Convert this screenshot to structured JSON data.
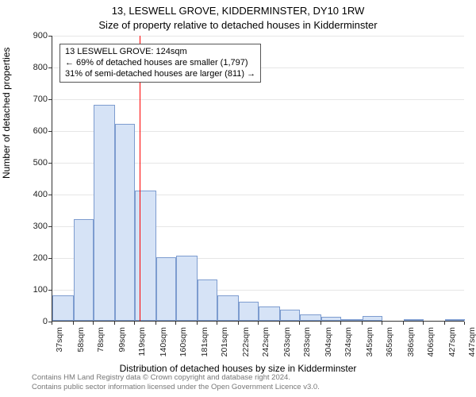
{
  "title_line1": "13, LESWELL GROVE, KIDDERMINSTER, DY10 1RW",
  "title_line2": "Size of property relative to detached houses in Kidderminster",
  "ylabel": "Number of detached properties",
  "xlabel": "Distribution of detached houses by size in Kidderminster",
  "footer_line1": "Contains HM Land Registry data © Crown copyright and database right 2024.",
  "footer_line2": "Contains public sector information licensed under the Open Government Licence v3.0.",
  "annotation": {
    "line1": "13 LESWELL GROVE: 124sqm",
    "line2": "← 69% of detached houses are smaller (1,797)",
    "line3": "31% of semi-detached houses are larger (811) →"
  },
  "chart": {
    "type": "histogram",
    "ylim": [
      0,
      900
    ],
    "ytick_step": 100,
    "bar_fill": "#d6e3f6",
    "bar_stroke": "#7d9ccf",
    "grid_color": "#e6e6e6",
    "marker_color": "#ff0000",
    "marker_x": 124,
    "label_fontsize": 12,
    "tick_fontsize": 11,
    "title_fontsize": 13,
    "categories": [
      "37sqm",
      "58sqm",
      "78sqm",
      "99sqm",
      "119sqm",
      "140sqm",
      "160sqm",
      "181sqm",
      "201sqm",
      "222sqm",
      "242sqm",
      "263sqm",
      "283sqm",
      "304sqm",
      "324sqm",
      "345sqm",
      "365sqm",
      "386sqm",
      "406sqm",
      "427sqm",
      "447sqm"
    ],
    "bar_bins": [
      {
        "start": 37,
        "end": 58,
        "value": 80
      },
      {
        "start": 58,
        "end": 78,
        "value": 320
      },
      {
        "start": 78,
        "end": 99,
        "value": 680
      },
      {
        "start": 99,
        "end": 119,
        "value": 620
      },
      {
        "start": 119,
        "end": 140,
        "value": 410
      },
      {
        "start": 140,
        "end": 160,
        "value": 200
      },
      {
        "start": 160,
        "end": 181,
        "value": 205
      },
      {
        "start": 181,
        "end": 201,
        "value": 130
      },
      {
        "start": 201,
        "end": 222,
        "value": 80
      },
      {
        "start": 222,
        "end": 242,
        "value": 60
      },
      {
        "start": 242,
        "end": 263,
        "value": 45
      },
      {
        "start": 263,
        "end": 283,
        "value": 35
      },
      {
        "start": 283,
        "end": 304,
        "value": 20
      },
      {
        "start": 304,
        "end": 324,
        "value": 12
      },
      {
        "start": 324,
        "end": 345,
        "value": 5
      },
      {
        "start": 345,
        "end": 365,
        "value": 15
      },
      {
        "start": 365,
        "end": 386,
        "value": 0
      },
      {
        "start": 386,
        "end": 406,
        "value": 6
      },
      {
        "start": 406,
        "end": 427,
        "value": 0
      },
      {
        "start": 427,
        "end": 447,
        "value": 5
      }
    ]
  }
}
